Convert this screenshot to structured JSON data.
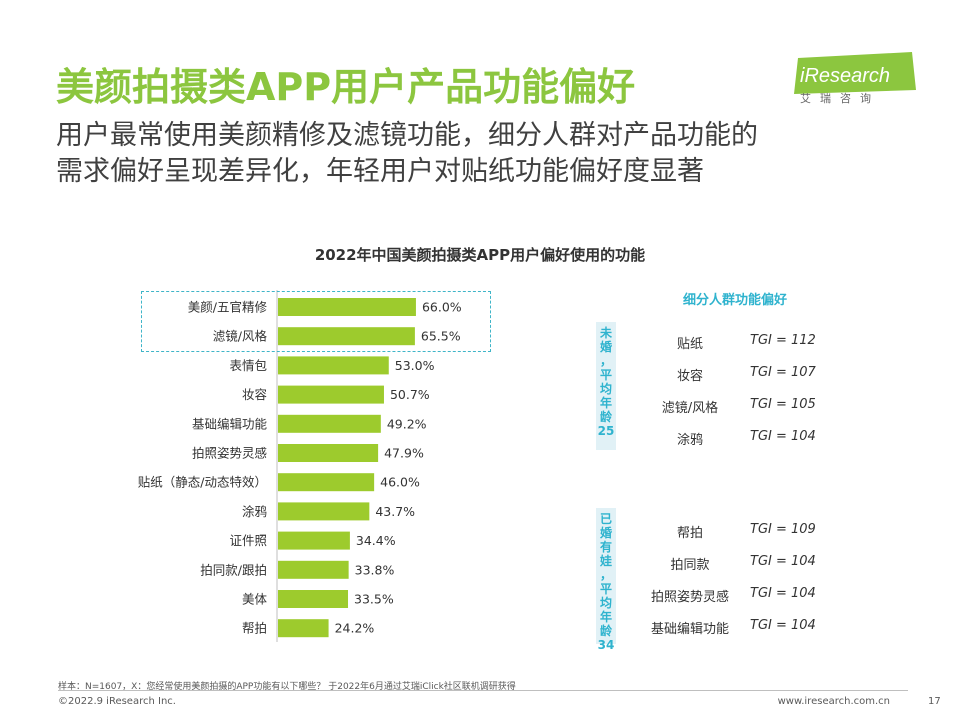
{
  "header": {
    "title": "美颜拍摄类APP用户产品功能偏好",
    "subtitle_line1": "用户最常使用美颜精修及滤镜功能，细分人群对产品功能的",
    "subtitle_line2": "需求偏好呈现差异化，年轻用户对贴纸功能偏好度显著"
  },
  "logo": {
    "name": "iResearch",
    "sub": "艾瑞咨询"
  },
  "chart_data": {
    "type": "bar",
    "orientation": "horizontal",
    "title": "2022年中国美颜拍摄类APP用户偏好使用的功能",
    "categories": [
      "美颜/五官精修",
      "滤镜/风格",
      "表情包",
      "妆容",
      "基础编辑功能",
      "拍照姿势灵感",
      "贴纸（静态/动态特效）",
      "涂鸦",
      "证件照",
      "拍同款/跟拍",
      "美体",
      "帮拍"
    ],
    "values": [
      66.0,
      65.5,
      53.0,
      50.7,
      49.2,
      47.9,
      46.0,
      43.7,
      34.4,
      33.8,
      33.5,
      24.2
    ],
    "value_labels": [
      "66.0%",
      "65.5%",
      "53.0%",
      "50.7%",
      "49.2%",
      "47.9%",
      "46.0%",
      "43.7%",
      "34.4%",
      "33.8%",
      "33.5%",
      "24.2%"
    ],
    "highlighted": [
      "美颜/五官精修",
      "滤镜/风格"
    ],
    "bar_color": "#9dcb2d",
    "xlim": [
      0,
      100
    ]
  },
  "segments": {
    "title": "细分人群功能偏好",
    "groups": [
      {
        "label_chars": [
          "未",
          "婚",
          "，",
          "平",
          "均",
          "年",
          "龄",
          "25"
        ],
        "items": [
          {
            "name": "贴纸",
            "tgi": "TGI = 112"
          },
          {
            "name": "妆容",
            "tgi": "TGI = 107"
          },
          {
            "name": "滤镜/风格",
            "tgi": "TGI = 105"
          },
          {
            "name": "涂鸦",
            "tgi": "TGI = 104"
          }
        ]
      },
      {
        "label_chars": [
          "已",
          "婚",
          "有",
          "娃",
          "，",
          "平",
          "均",
          "年",
          "龄",
          "34"
        ],
        "items": [
          {
            "name": "帮拍",
            "tgi": "TGI = 109"
          },
          {
            "name": "拍同款",
            "tgi": "TGI = 104"
          },
          {
            "name": "拍照姿势灵感",
            "tgi": "TGI = 104"
          },
          {
            "name": "基础编辑功能",
            "tgi": "TGI = 104"
          }
        ]
      }
    ]
  },
  "footer": {
    "note": "样本：N=1607，X：您经常使用美颜拍摄的APP功能有以下哪些？ 于2022年6月通过艾瑞iClick社区联机调研获得",
    "copyright": "©2022.9 iResearch Inc.",
    "website": "www.iresearch.com.cn",
    "page": "17"
  },
  "colors": {
    "accent": "#8cc63f",
    "teal": "#2fb3ce",
    "bar": "#9dcb2d"
  }
}
